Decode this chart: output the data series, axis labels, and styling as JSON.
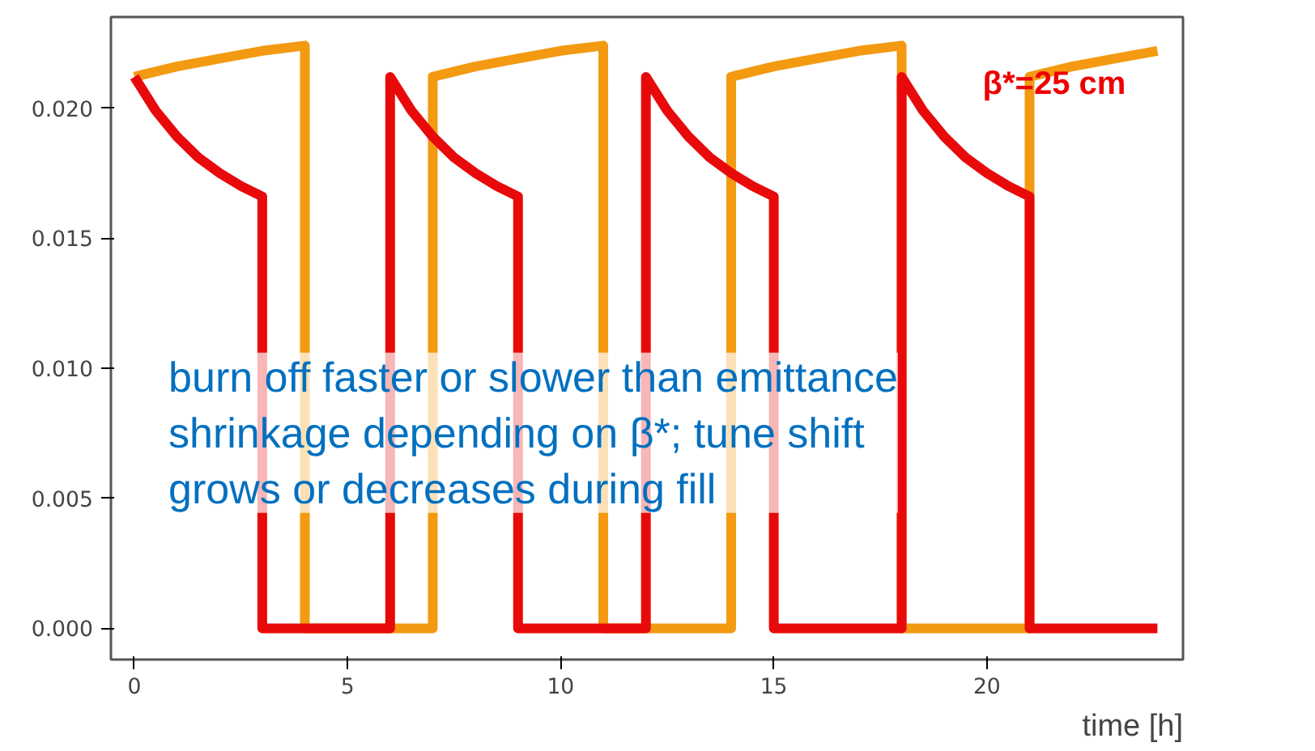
{
  "chart_data": {
    "type": "line",
    "xlabel": "time [h]",
    "xlim": [
      -0.55,
      24.6
    ],
    "ylim": [
      -0.0012,
      0.0235
    ],
    "xticks": [
      0,
      5,
      10,
      15,
      20
    ],
    "yticks": [
      {
        "value": 0,
        "label": "0.000"
      },
      {
        "value": 0.005,
        "label": "0.005"
      },
      {
        "value": 0.01,
        "label": "0.010"
      },
      {
        "value": 0.015,
        "label": "0.015"
      },
      {
        "value": 0.02,
        "label": "0.020"
      }
    ],
    "grid": false,
    "marker": "none",
    "line_style": "solid",
    "annotations": [
      "β*=25 cm",
      "burn off faster or slower than emittance shrinkage depending on β*; tune shift grows or decreases during fill"
    ],
    "series": [
      {
        "color": "#f39a12",
        "x": [
          0,
          1,
          2,
          3,
          4,
          4,
          7,
          7,
          8,
          9,
          10,
          11,
          11,
          14,
          14,
          15,
          16,
          17,
          18,
          18,
          21,
          21,
          22,
          23,
          24
        ],
        "values": [
          0.0212,
          0.0216,
          0.0219,
          0.0222,
          0.0224,
          0,
          0,
          0.0212,
          0.0216,
          0.0219,
          0.0222,
          0.0224,
          0,
          0,
          0.0212,
          0.0216,
          0.0219,
          0.0222,
          0.0224,
          0,
          0,
          0.0212,
          0.0216,
          0.0219,
          0.0222
        ]
      },
      {
        "color": "#e80a0a",
        "x": [
          0,
          0.5,
          1,
          1.5,
          2,
          2.5,
          3,
          3,
          6,
          6,
          6.5,
          7,
          7.5,
          8,
          8.5,
          9,
          9,
          12,
          12,
          12.5,
          13,
          13.5,
          14,
          14.5,
          15,
          15,
          18,
          18,
          18.5,
          19,
          19.5,
          20,
          20.5,
          21,
          21,
          24
        ],
        "values": [
          0.0212,
          0.0199,
          0.0189,
          0.0181,
          0.0175,
          0.017,
          0.0166,
          0,
          0,
          0.0212,
          0.0199,
          0.0189,
          0.0181,
          0.0175,
          0.017,
          0.0166,
          0,
          0,
          0.0212,
          0.0199,
          0.0189,
          0.0181,
          0.0175,
          0.017,
          0.0166,
          0,
          0,
          0.0212,
          0.0199,
          0.0189,
          0.0181,
          0.0175,
          0.017,
          0.0166,
          0,
          0
        ]
      }
    ]
  }
}
